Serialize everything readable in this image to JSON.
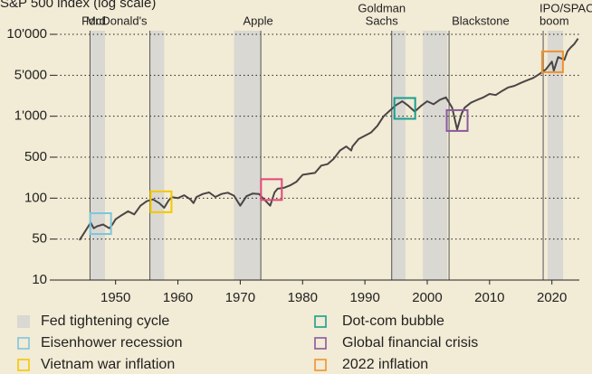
{
  "chart_data": {
    "type": "line",
    "title": "S&P 500 index (log scale)",
    "log": true,
    "grid": true,
    "color": "#4a4545",
    "xlim": [
      1943.8,
      2024.4
    ],
    "xticks": [
      1950,
      1960,
      1970,
      1980,
      1990,
      2000,
      2010,
      2020
    ],
    "ylim": [
      10,
      10000
    ],
    "yticks": [
      10,
      50,
      100,
      500,
      {
        "value": 1000,
        "label": "1'000"
      },
      {
        "value": 5000,
        "label": "5'000"
      },
      {
        "value": 10000,
        "label": "10'000"
      }
    ],
    "x": [
      1944.2,
      1945,
      1946,
      1946.5,
      1947,
      1948,
      1949,
      1949.5,
      1950,
      1951,
      1952,
      1953,
      1954,
      1955,
      1956,
      1957,
      1957.8,
      1958.5,
      1959,
      1960,
      1961,
      1962,
      1962.5,
      1963,
      1964,
      1965,
      1966,
      1967,
      1968,
      1969,
      1970,
      1971,
      1972,
      1973,
      1974,
      1974.8,
      1975.5,
      1976,
      1977,
      1978,
      1979,
      1980,
      1981,
      1982,
      1983,
      1984,
      1985,
      1986,
      1987,
      1987.8,
      1988,
      1989,
      1990,
      1991,
      1992,
      1993,
      1994,
      1995,
      1996,
      1997,
      1998,
      1999,
      2000,
      2001,
      2002,
      2003,
      2004,
      2004.8,
      2005.5,
      2006,
      2007,
      2008,
      2009,
      2010,
      2011,
      2012,
      2013,
      2014,
      2015,
      2016,
      2017,
      2018,
      2019,
      2020,
      2020.3,
      2021,
      2022,
      2022.5,
      2023,
      2023.6,
      2024.2
    ],
    "values": [
      48,
      56,
      66,
      60,
      62,
      64,
      60,
      64,
      70,
      75,
      80,
      76,
      88,
      95,
      98,
      92,
      85,
      96,
      104,
      100,
      112,
      98,
      92,
      105,
      118,
      125,
      105,
      118,
      124,
      110,
      88,
      108,
      120,
      118,
      96,
      88,
      125,
      145,
      150,
      165,
      190,
      250,
      260,
      270,
      360,
      380,
      470,
      560,
      600,
      560,
      600,
      680,
      720,
      760,
      850,
      1000,
      1250,
      1550,
      1800,
      1500,
      1200,
      1500,
      1800,
      1600,
      1900,
      2100,
      1400,
      800,
      1100,
      1400,
      1700,
      1900,
      2100,
      2400,
      2300,
      2700,
      3100,
      3300,
      3700,
      4100,
      4500,
      5100,
      5500,
      6300,
      5400,
      6800,
      6500,
      7500,
      8000,
      8500,
      9300
    ],
    "shaded": {
      "name": "Fed tightening cycle",
      "color": "#d9d8d2",
      "ranges": [
        [
          1946,
          1948.3
        ],
        [
          1955.5,
          1957.8
        ],
        [
          1969,
          1973.3
        ],
        [
          1994.2,
          1996.5
        ],
        [
          1999.3,
          2003.2
        ],
        [
          2019.3,
          2021.8
        ]
      ]
    },
    "events": [
      {
        "label": [
          "Ford"
        ],
        "x": 1945.9
      },
      {
        "label": [
          "McDonald's"
        ],
        "x": 1955.5
      },
      {
        "label": [
          "Apple"
        ],
        "x": 1973.3
      },
      {
        "label": [
          "Goldman",
          "Sachs"
        ],
        "x": 1994.3
      },
      {
        "label": [
          "Blackstone"
        ],
        "x": 2003.5
      },
      {
        "label": [
          "IPO/SPAC",
          "boom"
        ],
        "x": 2018.6
      }
    ],
    "boxes": [
      {
        "name": "Eisenhower recession",
        "color": "#7cc6e0",
        "x": 1947.6,
        "y": 65
      },
      {
        "name": "Vietnam war inflation",
        "color": "#f5c800",
        "x": 1957.3,
        "y": 94
      },
      {
        "color": "#e0487a",
        "x": 1975.0,
        "y": 140
      },
      {
        "name": "Dot-com bubble",
        "color": "#1a9e8f",
        "x": 1996.4,
        "y": 1360
      },
      {
        "name": "Global financial crisis",
        "color": "#8a5a9e",
        "x": 2004.8,
        "y": 930
      },
      {
        "name": "2022 inflation",
        "color": "#f0922e",
        "x": 2020.1,
        "y": 6280
      }
    ]
  }
}
